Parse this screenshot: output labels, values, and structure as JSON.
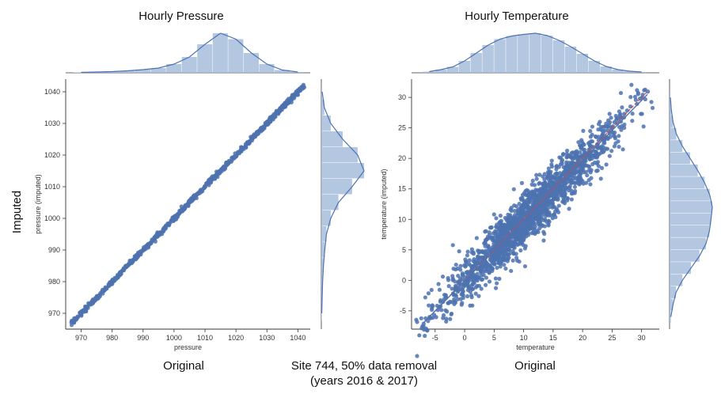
{
  "figure": {
    "left_title": "Hourly Pressure",
    "right_title": "Hourly Temperature",
    "ylabel_shared": "Imputed",
    "left_xlabel_big": "Original",
    "right_xlabel_big": "Original",
    "caption_line1": "Site 744, 50% data removal",
    "caption_line2": "(years 2016 & 2017)"
  },
  "colors": {
    "points": "#4c72b0",
    "fit_line": "#4c72b0",
    "identity_line": "#c44e52",
    "hist": "#a7bddc"
  },
  "chart_data": [
    {
      "type": "scatter",
      "title": "Hourly Pressure",
      "xlabel": "pressure",
      "ylabel": "pressure (imputed)",
      "xlim": [
        965,
        1044
      ],
      "ylim": [
        965,
        1044
      ],
      "xticks": [
        970,
        980,
        990,
        1000,
        1010,
        1020,
        1030,
        1040
      ],
      "yticks": [
        970,
        980,
        990,
        1000,
        1010,
        1020,
        1030,
        1040
      ],
      "trend": {
        "x": [
          967,
          1042
        ],
        "y": [
          967,
          1042
        ]
      },
      "noise": 0.35,
      "marginal_x": {
        "bins": [
          970,
          975,
          980,
          985,
          990,
          995,
          1000,
          1005,
          1010,
          1015,
          1020,
          1025,
          1030,
          1035,
          1040
        ],
        "density": [
          0.01,
          0.02,
          0.03,
          0.05,
          0.08,
          0.12,
          0.22,
          0.4,
          0.72,
          1.0,
          0.85,
          0.5,
          0.22,
          0.07,
          0.02
        ]
      },
      "marginal_y": {
        "bins": [
          970,
          975,
          980,
          985,
          990,
          995,
          1000,
          1005,
          1010,
          1015,
          1020,
          1025,
          1030,
          1035,
          1040
        ],
        "density": [
          0.01,
          0.02,
          0.03,
          0.05,
          0.08,
          0.12,
          0.22,
          0.4,
          0.72,
          1.0,
          0.85,
          0.5,
          0.22,
          0.07,
          0.02
        ]
      }
    },
    {
      "type": "scatter",
      "title": "Hourly Temperature",
      "xlabel": "temperature",
      "ylabel": "temperature (imputed)",
      "xlim": [
        -9,
        33
      ],
      "ylim": [
        -8,
        33
      ],
      "xticks": [
        -5,
        0,
        5,
        10,
        15,
        20,
        25,
        30
      ],
      "yticks": [
        -5,
        0,
        5,
        10,
        15,
        20,
        25,
        30
      ],
      "trend": {
        "x": [
          -7,
          31
        ],
        "y": [
          -7,
          30.5
        ]
      },
      "noise": 1.8,
      "marginal_x": {
        "bins": [
          -6,
          -4,
          -2,
          0,
          2,
          4,
          6,
          8,
          10,
          12,
          14,
          16,
          18,
          20,
          22,
          24,
          26,
          28,
          30
        ],
        "density": [
          0.03,
          0.08,
          0.15,
          0.3,
          0.5,
          0.7,
          0.85,
          0.93,
          0.97,
          1.0,
          0.94,
          0.82,
          0.66,
          0.48,
          0.3,
          0.16,
          0.08,
          0.04,
          0.02
        ]
      },
      "marginal_y": {
        "bins": [
          -6,
          -4,
          -2,
          0,
          2,
          4,
          6,
          8,
          10,
          12,
          14,
          16,
          18,
          20,
          22,
          24,
          26,
          28,
          30
        ],
        "density": [
          0.03,
          0.08,
          0.15,
          0.3,
          0.5,
          0.7,
          0.85,
          0.93,
          0.97,
          1.0,
          0.94,
          0.82,
          0.66,
          0.48,
          0.3,
          0.16,
          0.08,
          0.04,
          0.02
        ]
      }
    }
  ]
}
